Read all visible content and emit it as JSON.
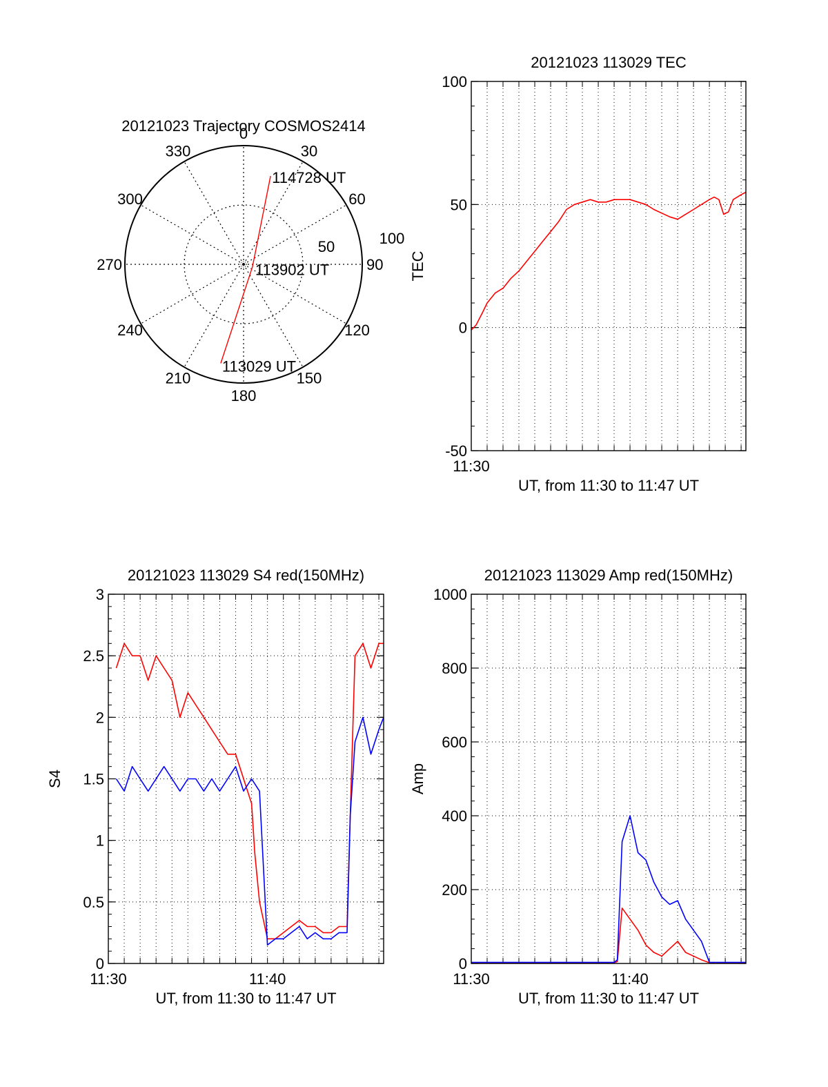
{
  "chart_data": [
    {
      "id": "trajectory",
      "type": "polar",
      "title": "20121023 Trajectory COSMOS2414",
      "angle_labels": [
        "0",
        "30",
        "60",
        "90",
        "120",
        "150",
        "180",
        "210",
        "240",
        "270",
        "300",
        "330"
      ],
      "radial_labels": [
        "50",
        "100"
      ],
      "rlim": [
        0,
        100
      ],
      "grid": true,
      "color": "#ff0000",
      "points": [
        {
          "label": "114728 UT",
          "azimuth": 17,
          "elevation": 20
        },
        {
          "label": "113902 UT",
          "azimuth": 105,
          "elevation": 83
        },
        {
          "label": "113029 UT",
          "azimuth": 193,
          "elevation": 13
        }
      ]
    },
    {
      "id": "tec",
      "type": "line",
      "title": "20121023 113029 TEC",
      "xlabel": "UT, from 11:30 to 11:47 UT",
      "ylabel": "TEC",
      "xlim": [
        0,
        17.3
      ],
      "ylim": [
        -50,
        100
      ],
      "yticks": [
        "-50",
        "0",
        "50",
        "100"
      ],
      "xticks": [
        "11:30"
      ],
      "grid": true,
      "series": [
        {
          "color": "#ff0000",
          "x": [
            0,
            0.3,
            0.7,
            1.0,
            1.5,
            2.0,
            2.5,
            3.0,
            3.5,
            4.0,
            4.5,
            5.0,
            5.5,
            6.0,
            6.5,
            7.0,
            7.5,
            8.0,
            8.5,
            9.0,
            9.5,
            10.0,
            10.5,
            11.0,
            11.5,
            12.5,
            13.0,
            13.5,
            14.0,
            14.5,
            15.0,
            15.3,
            15.6,
            15.9,
            16.2,
            16.5,
            17.0,
            17.3
          ],
          "y": [
            -1,
            1,
            6,
            10,
            14,
            16,
            20,
            23,
            27,
            31,
            35,
            39,
            43,
            48,
            50,
            51,
            52,
            51,
            51,
            52,
            52,
            52,
            51,
            50,
            48,
            45,
            44,
            46,
            48,
            50,
            52,
            53,
            52,
            46,
            47,
            52,
            54,
            55
          ]
        }
      ]
    },
    {
      "id": "s4",
      "type": "line",
      "title": "20121023 113029 S4 red(150MHz)",
      "xlabel": "UT, from 11:30 to 11:47 UT",
      "ylabel": "S4",
      "xlim": [
        0,
        17.3
      ],
      "ylim": [
        0,
        3
      ],
      "yticks": [
        "0",
        "0.5",
        "1",
        "1.5",
        "2",
        "2.5",
        "3"
      ],
      "xticks": [
        "11:30",
        "11:40"
      ],
      "grid": true,
      "series": [
        {
          "color": "#ff0000",
          "x": [
            0.5,
            1.0,
            1.5,
            2.0,
            2.5,
            3.0,
            3.5,
            4.0,
            4.5,
            5.0,
            5.5,
            6.0,
            6.5,
            7.0,
            7.5,
            8.0,
            8.5,
            9.0,
            9.2,
            9.5,
            10.0,
            10.5,
            11.0,
            11.5,
            12.0,
            12.5,
            13.0,
            13.5,
            14.0,
            14.5,
            15.0,
            15.2,
            15.5,
            16.0,
            16.5,
            17.0,
            17.3
          ],
          "y": [
            2.4,
            2.6,
            2.5,
            2.5,
            2.3,
            2.5,
            2.4,
            2.3,
            2.0,
            2.2,
            2.1,
            2.0,
            1.9,
            1.8,
            1.7,
            1.7,
            1.5,
            1.3,
            0.9,
            0.5,
            0.2,
            0.2,
            0.25,
            0.3,
            0.35,
            0.3,
            0.3,
            0.25,
            0.25,
            0.3,
            0.3,
            1.2,
            2.5,
            2.6,
            2.4,
            2.6,
            2.6
          ]
        },
        {
          "color": "#0000ff",
          "x": [
            0.5,
            1.0,
            1.5,
            2.0,
            2.5,
            3.0,
            3.5,
            4.0,
            4.5,
            5.0,
            5.5,
            6.0,
            6.5,
            7.0,
            7.5,
            8.0,
            8.5,
            9.0,
            9.5,
            10.0,
            10.5,
            11.0,
            11.5,
            12.0,
            12.5,
            13.0,
            13.5,
            14.0,
            14.5,
            15.0,
            15.2,
            15.5,
            16.0,
            16.5,
            17.0,
            17.3
          ],
          "y": [
            1.5,
            1.4,
            1.6,
            1.5,
            1.4,
            1.5,
            1.6,
            1.5,
            1.4,
            1.5,
            1.5,
            1.4,
            1.5,
            1.4,
            1.5,
            1.6,
            1.4,
            1.5,
            1.4,
            0.15,
            0.2,
            0.2,
            0.25,
            0.3,
            0.2,
            0.25,
            0.2,
            0.2,
            0.25,
            0.25,
            1.2,
            1.8,
            2.0,
            1.7,
            1.9,
            2.0
          ]
        }
      ]
    },
    {
      "id": "amp",
      "type": "line",
      "title": "20121023 113029 Amp red(150MHz)",
      "xlabel": "UT, from 11:30 to 11:47 UT",
      "ylabel": "Amp",
      "xlim": [
        0,
        17.3
      ],
      "ylim": [
        0,
        1000
      ],
      "yticks": [
        "0",
        "200",
        "400",
        "600",
        "800",
        "1000"
      ],
      "xticks": [
        "11:30",
        "11:40"
      ],
      "grid": true,
      "series": [
        {
          "color": "#ff0000",
          "x": [
            0,
            9.0,
            9.2,
            9.5,
            10.0,
            10.5,
            11.0,
            11.5,
            12.0,
            12.5,
            13.0,
            13.5,
            14.0,
            14.5,
            15.0,
            17.3
          ],
          "y": [
            2,
            2,
            5,
            150,
            120,
            90,
            50,
            30,
            20,
            40,
            60,
            30,
            20,
            10,
            2,
            2
          ]
        },
        {
          "color": "#0000ff",
          "x": [
            0,
            9.0,
            9.2,
            9.5,
            10.0,
            10.5,
            11.0,
            11.5,
            12.0,
            12.5,
            13.0,
            13.5,
            14.0,
            14.5,
            15.0,
            17.3
          ],
          "y": [
            3,
            3,
            10,
            330,
            400,
            300,
            280,
            220,
            180,
            160,
            170,
            120,
            90,
            60,
            3,
            3
          ]
        }
      ]
    }
  ]
}
